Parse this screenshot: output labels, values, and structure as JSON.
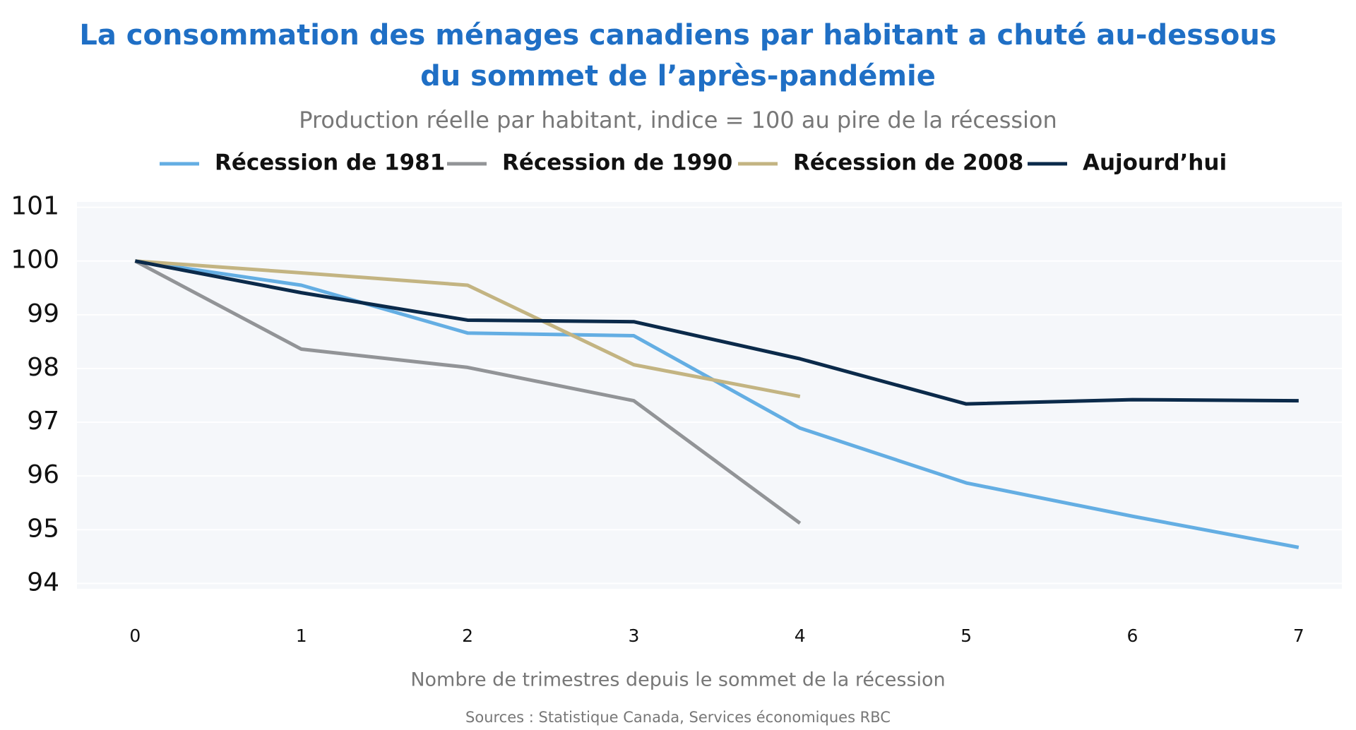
{
  "chart_data": {
    "type": "line",
    "title": [
      "La consommation des ménages canadiens par habitant a chuté au-dessous",
      "du sommet de l’après-pandémie"
    ],
    "subtitle": "Production réelle par habitant, indice = 100 au pire de la récession",
    "x_label": "Nombre de trimestres depuis le sommet de la récession",
    "source": "Sources : Statistique Canada, Services économiques RBC",
    "x": [
      0,
      1,
      2,
      3,
      4,
      5,
      6,
      7
    ],
    "series": [
      {
        "name": "Récession de 1981",
        "color": "#64aee3",
        "values": [
          100,
          99.55,
          98.66,
          98.61,
          96.89,
          95.87,
          95.25,
          94.67
        ]
      },
      {
        "name": "Récession de 1990",
        "color": "#929497",
        "values": [
          100,
          98.36,
          98.02,
          97.4,
          95.12,
          null,
          null,
          null
        ]
      },
      {
        "name": "Récession de 2008",
        "color": "#c3b482",
        "values": [
          100,
          99.78,
          99.55,
          98.07,
          97.48,
          null,
          null,
          null
        ]
      },
      {
        "name": "Aujourd’hui",
        "color": "#0b2a4a",
        "values": [
          100,
          99.41,
          98.9,
          98.87,
          98.18,
          97.34,
          97.42,
          97.4
        ]
      }
    ],
    "xlim": [
      -0.35,
      7.26
    ],
    "xticks": [
      0,
      1,
      2,
      3,
      4,
      5,
      6,
      7
    ],
    "ylim": [
      93.9,
      101.1
    ],
    "yticks": [
      94,
      95,
      96,
      97,
      98,
      99,
      100,
      101
    ],
    "grid": true
  }
}
